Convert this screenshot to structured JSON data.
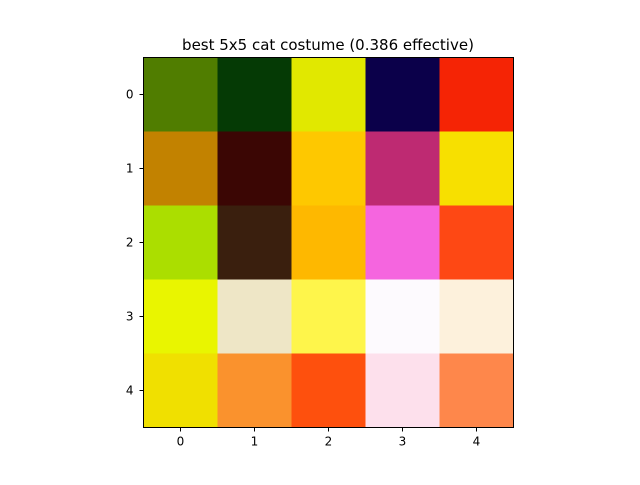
{
  "chart_data": {
    "type": "heatmap",
    "title": "best 5x5 cat costume (0.386 effective)",
    "xlabel": "",
    "ylabel": "",
    "x_ticks": [
      "0",
      "1",
      "2",
      "3",
      "4"
    ],
    "y_ticks": [
      "0",
      "1",
      "2",
      "3",
      "4"
    ],
    "xlim": [
      -0.5,
      4.5
    ],
    "ylim": [
      4.5,
      -0.5
    ],
    "grid": false,
    "cells": [
      [
        "#507d00",
        "#053a05",
        "#e1e800",
        "#0b004a",
        "#f52405"
      ],
      [
        "#c28200",
        "#3b0604",
        "#fec800",
        "#be2a72",
        "#f7e000"
      ],
      [
        "#abde00",
        "#3a1f0e",
        "#feb800",
        "#f565df",
        "#fe4814"
      ],
      [
        "#e9f500",
        "#eee6c6",
        "#fef54b",
        "#fdfafe",
        "#fdf1dc"
      ],
      [
        "#f0e000",
        "#fa922d",
        "#fe500d",
        "#fde0ec",
        "#fe874b"
      ]
    ]
  }
}
